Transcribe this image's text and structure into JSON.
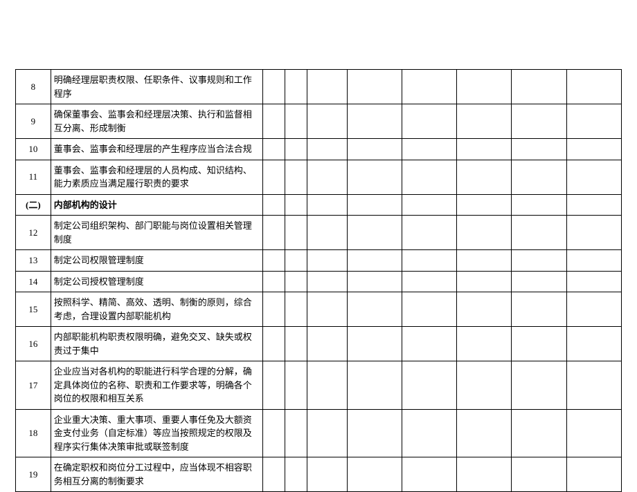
{
  "table": {
    "border_color": "#000000",
    "background_color": "#ffffff",
    "text_color": "#000000",
    "font_size": 13,
    "line_height": 1.5,
    "columns": {
      "num_width": 48,
      "desc_width": 290,
      "blank_count": 8
    },
    "rows": [
      {
        "num": "8",
        "desc": "明确经理层职责权限、任职条件、议事规则和工作程序",
        "bold": false
      },
      {
        "num": "9",
        "desc": "确保董事会、监事会和经理层决策、执行和监督相互分离、形成制衡",
        "bold": false
      },
      {
        "num": "10",
        "desc": "董事会、监事会和经理层的产生程序应当合法合规",
        "bold": false
      },
      {
        "num": "11",
        "desc": "董事会、监事会和经理层的人员构成、知识结构、能力素质应当满足履行职责的要求",
        "bold": false
      },
      {
        "num": "(二)",
        "desc": "内部机构的设计",
        "bold": true
      },
      {
        "num": "12",
        "desc": "制定公司组织架构、部门职能与岗位设置相关管理制度",
        "bold": false
      },
      {
        "num": "13",
        "desc": "制定公司权限管理制度",
        "bold": false
      },
      {
        "num": "14",
        "desc": "制定公司授权管理制度",
        "bold": false
      },
      {
        "num": "15",
        "desc": "按照科学、精简、高效、透明、制衡的原则，综合考虑，合理设置内部职能机构",
        "bold": false
      },
      {
        "num": "16",
        "desc": "内部职能机构职责权限明确，避免交叉、缺失或权责过于集中",
        "bold": false
      },
      {
        "num": "17",
        "desc": "企业应当对各机构的职能进行科学合理的分解，确定具体岗位的名称、职责和工作要求等，明确各个岗位的权限和相互关系",
        "bold": false
      },
      {
        "num": "18",
        "desc": "企业重大决策、重大事项、重要人事任免及大额资金支付业务（自定标准）等应当按照规定的权限及程序实行集体决策审批或联签制度",
        "bold": false
      },
      {
        "num": "19",
        "desc": "在确定职权和岗位分工过程中，应当体现不相容职务相互分离的制衡要求",
        "bold": false
      }
    ]
  }
}
